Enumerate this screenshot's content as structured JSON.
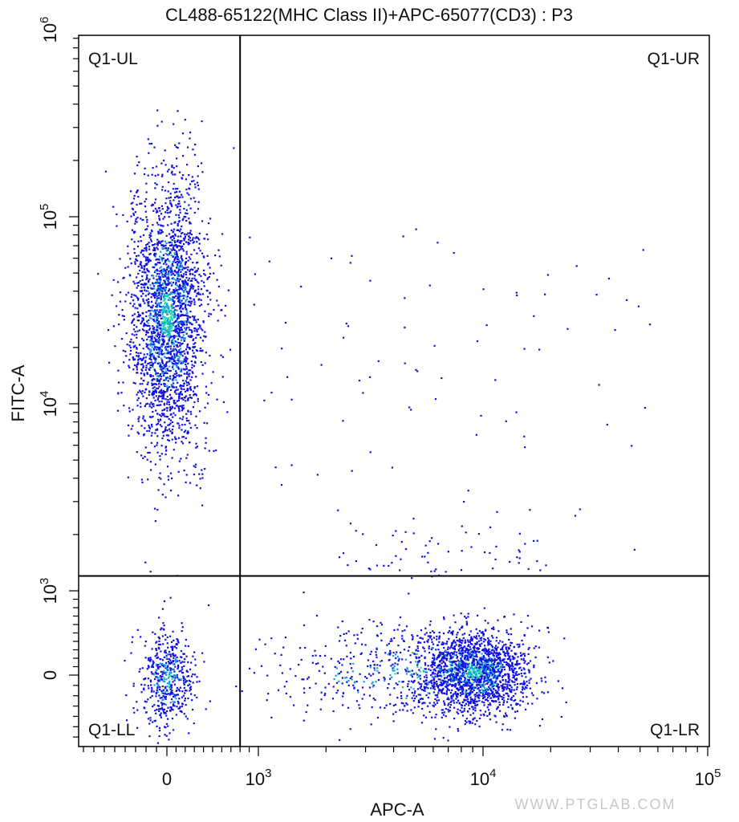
{
  "chart_data": {
    "type": "scatter",
    "title": "CL488-65122(MHC Class II)+APC-65077(CD3) : P3",
    "xlabel": "APC-A",
    "ylabel": "FITC-A",
    "x_scale": "biexponential",
    "y_scale": "biexponential",
    "x_range": [
      -1000,
      100000
    ],
    "y_range": [
      -700,
      1000000
    ],
    "x_tick_labels": [
      {
        "value": 0,
        "base": "0",
        "exp": ""
      },
      {
        "value": 1000,
        "base": "10",
        "exp": "3"
      },
      {
        "value": 10000,
        "base": "10",
        "exp": "4"
      },
      {
        "value": 100000,
        "base": "10",
        "exp": "5"
      }
    ],
    "y_tick_labels": [
      {
        "value": 0,
        "base": "0",
        "exp": ""
      },
      {
        "value": 1000,
        "base": "10",
        "exp": "3"
      },
      {
        "value": 10000,
        "base": "10",
        "exp": "4"
      },
      {
        "value": 100000,
        "base": "10",
        "exp": "5"
      },
      {
        "value": 1000000,
        "base": "10",
        "exp": "6"
      }
    ],
    "gate": {
      "x": 800,
      "y": 1200
    },
    "quadrants": [
      "Q1-UL",
      "Q1-UR",
      "Q1-LL",
      "Q1-LR"
    ],
    "populations": [
      {
        "name": "",
        "center": [
          0,
          30000
        ],
        "spread": "upper-left cluster, MHC Class II+ CD3-"
      },
      {
        "name": "",
        "center": [
          0,
          100
        ],
        "spread": "lower-left cluster, double negative"
      },
      {
        "name": "",
        "center": [
          9000,
          100
        ],
        "spread": "lower-right cluster, MHC Class II- CD3+"
      }
    ],
    "colors": {
      "density_low": "#1010e0",
      "density_mid": "#14a0d8",
      "density_high": "#20e0a0",
      "gate_line": "#000000"
    },
    "grid": false,
    "legend": "none"
  },
  "watermark": "WWW.PTGLAB.COM"
}
